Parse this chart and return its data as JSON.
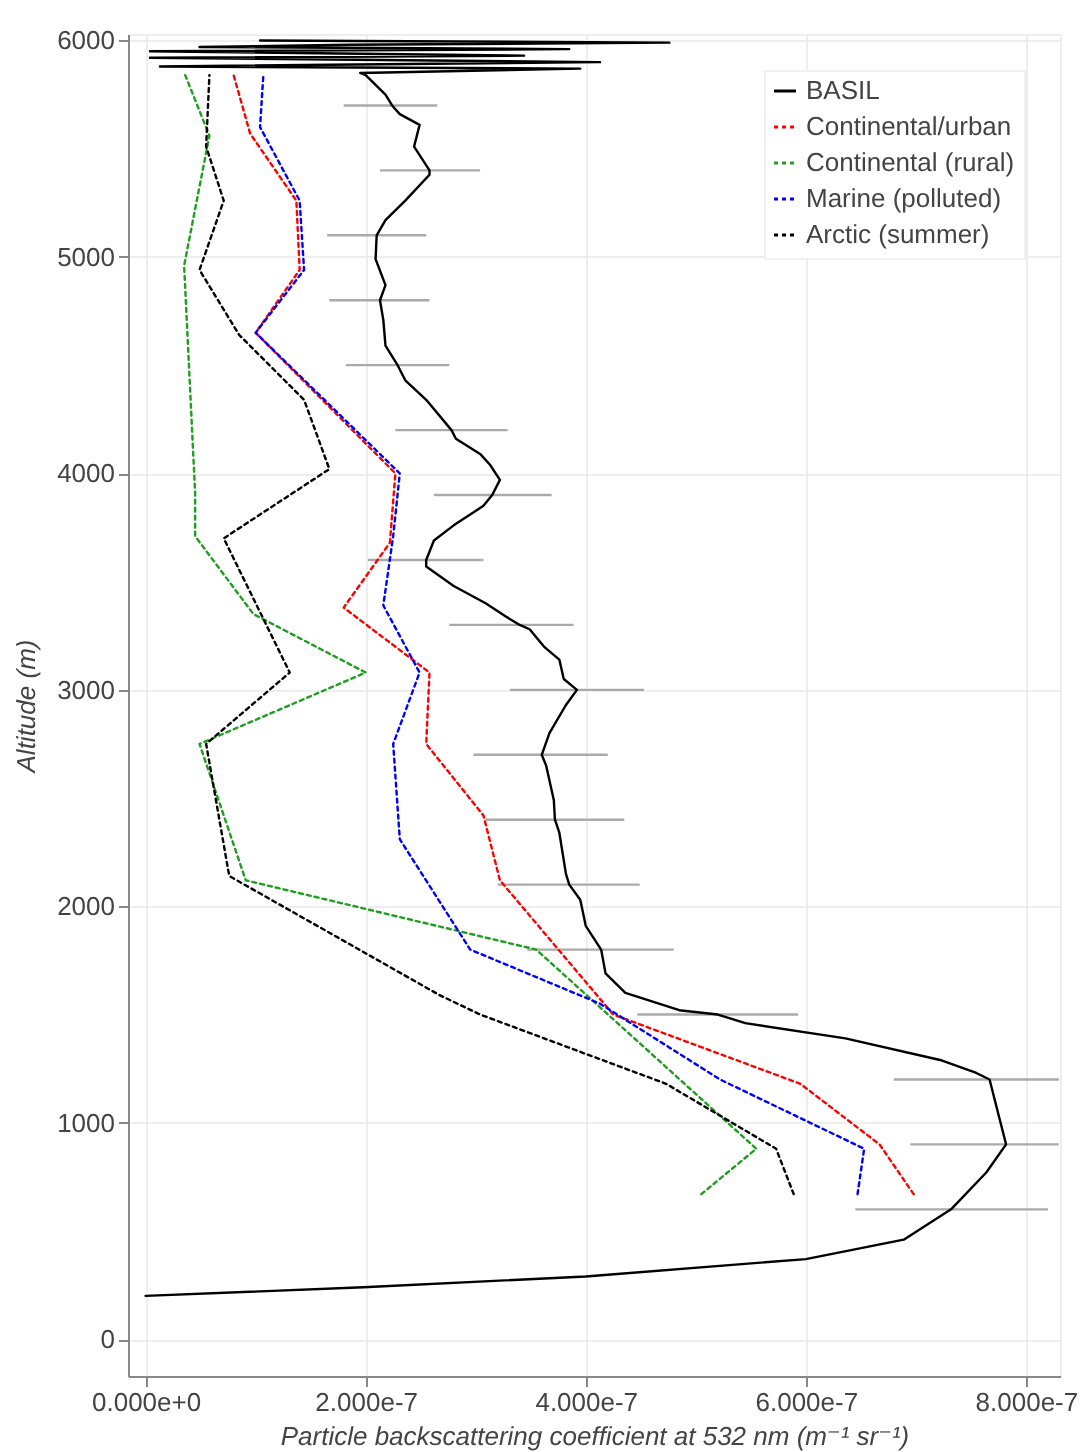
{
  "chart_data": {
    "type": "line",
    "xlabel": "Particle backscattering coefficient at 532 nm  (m⁻¹ sr⁻¹)",
    "ylabel": "Altitude (m)",
    "xlim": [
      -1.6e-08,
      8.31e-07
    ],
    "xticks": [
      {
        "value": 0,
        "label": "0.000e+0"
      },
      {
        "value": 2e-07,
        "label": "2.000e-7"
      },
      {
        "value": 4e-07,
        "label": "4.000e-7"
      },
      {
        "value": 6e-07,
        "label": "6.000e-7"
      },
      {
        "value": 8e-07,
        "label": "8.000e-7"
      }
    ],
    "ylim": [
      -170,
      6030
    ],
    "yticks": [
      0,
      1000,
      2000,
      3000,
      4000,
      5000,
      6000
    ],
    "grid": true,
    "legend": "top right",
    "series": [
      {
        "name": "BASIL",
        "color": "#000000",
        "line_style": "solid",
        "x": [
          0,
          1.98e-07,
          4e-07,
          6e-07,
          6.89e-07,
          7.32e-07,
          7.64e-07,
          7.82e-07,
          7.76e-07,
          7.67e-07,
          7.55e-07,
          7.22e-07,
          6.36e-07,
          5.45e-07,
          5.2e-07,
          4.85e-07,
          4.36e-07,
          4.18e-07,
          4.14e-07,
          4e-07,
          3.95e-07,
          3.85e-07,
          3.82e-07,
          3.76e-07,
          3.72e-07,
          3.71e-07,
          3.64e-07,
          3.6e-07,
          3.67e-07,
          3.82e-07,
          3.92e-07,
          3.8e-07,
          3.76e-07,
          3.62e-07,
          3.49e-07,
          3.4e-07,
          3.27e-07,
          3.09e-07,
          2.8e-07,
          2.55e-07,
          2.55e-07,
          2.62e-07,
          2.8e-07,
          3.07e-07,
          3.15e-07,
          3.22e-07,
          3.13e-07,
          3.04e-07,
          2.82e-07,
          2.78e-07,
          2.55e-07,
          2.36e-07,
          2.29e-07,
          2.18e-07,
          2.16e-07,
          2.13e-07,
          2.18e-07,
          2.09e-07,
          2.1e-07,
          2.18e-07,
          2.36e-07,
          2.58e-07,
          2.58e-07,
          2.44e-07,
          2.49e-07,
          2.31e-07,
          2.24e-07,
          2.18e-07,
          2e-07,
          1.95e-07,
          3.95e-07,
          1.3e-08,
          4.13e-07,
          4e-09,
          3.44e-07,
          4e-09,
          3.85e-07,
          4.9e-08,
          1.85e-07,
          4.76e-07,
          1.04e-07
        ],
        "values": [
          200,
          240,
          290,
          370,
          460,
          600,
          770,
          900,
          1020,
          1200,
          1230,
          1290,
          1390,
          1460,
          1500,
          1520,
          1600,
          1690,
          1800,
          1910,
          2030,
          2100,
          2150,
          2340,
          2400,
          2490,
          2650,
          2700,
          2800,
          2930,
          3000,
          3050,
          3140,
          3200,
          3280,
          3300,
          3340,
          3400,
          3480,
          3570,
          3600,
          3690,
          3760,
          3850,
          3900,
          3970,
          4040,
          4090,
          4160,
          4200,
          4340,
          4430,
          4500,
          4590,
          4710,
          4800,
          4870,
          4990,
          5100,
          5170,
          5260,
          5380,
          5400,
          5510,
          5610,
          5660,
          5700,
          5750,
          5840,
          5850,
          5870,
          5880,
          5900,
          5920,
          5930,
          5950,
          5960,
          5970,
          5980,
          5990,
          6000
        ],
        "xerrors": [
          null,
          null,
          null,
          null,
          null,
          [
            6.45e-07,
            8.2e-07
          ],
          null,
          [
            6.95e-07,
            8.3e-07
          ],
          null,
          [
            6.8e-07,
            8.3e-07
          ],
          null,
          null,
          null,
          null,
          [
            4.47e-07,
            5.93e-07
          ],
          null,
          null,
          null,
          [
            3.47e-07,
            4.8e-07
          ],
          null,
          null,
          [
            3.2e-07,
            4.49e-07
          ],
          null,
          null,
          [
            3.09e-07,
            4.35e-07
          ],
          null,
          null,
          [
            2.98e-07,
            4.2e-07
          ],
          null,
          null,
          [
            3.31e-07,
            4.53e-07
          ],
          null,
          null,
          null,
          null,
          [
            2.76e-07,
            3.89e-07
          ],
          null,
          null,
          null,
          null,
          [
            2.02e-07,
            3.07e-07
          ],
          null,
          null,
          null,
          [
            2.62e-07,
            3.69e-07
          ],
          null,
          null,
          null,
          null,
          [
            2.27e-07,
            3.29e-07
          ],
          null,
          null,
          [
            1.82e-07,
            2.76e-07
          ],
          null,
          null,
          [
            1.67e-07,
            2.58e-07
          ],
          null,
          null,
          [
            1.65e-07,
            2.55e-07
          ],
          null,
          null,
          null,
          [
            2.13e-07,
            3.04e-07
          ],
          null,
          null,
          null,
          [
            1.8e-07,
            2.65e-07
          ],
          null,
          null,
          null,
          null,
          null,
          null,
          null,
          null,
          null,
          null,
          null,
          null,
          null,
          null
        ]
      },
      {
        "name": "Continental/urban",
        "color": "#ff0000",
        "line_style": "dotted",
        "x": [
          6.98e-07,
          6.67e-07,
          5.95e-07,
          4.25e-07,
          3.22e-07,
          3.07e-07,
          2.55e-07,
          2.58e-07,
          1.8e-07,
          2.22e-07,
          2.27e-07,
          1e-07,
          1.4e-07,
          1.37e-07,
          9.5e-08,
          8e-08
        ],
        "values": [
          670,
          900,
          1180,
          1500,
          2120,
          2420,
          2750,
          3080,
          3380,
          3680,
          4000,
          4650,
          4940,
          5260,
          5570,
          5840
        ]
      },
      {
        "name": "Continental (rural)",
        "color": "#1f9e1f",
        "line_style": "dotted",
        "x": [
          5.05e-07,
          5.55e-07,
          3.55e-07,
          9.1e-08,
          4.9e-08,
          2e-07,
          9.8e-08,
          4.5e-08,
          4.5e-08,
          3.5e-08,
          5.8e-08,
          3.6e-08
        ],
        "values": [
          670,
          880,
          1800,
          2120,
          2750,
          3080,
          3350,
          3710,
          3910,
          4960,
          5560,
          5840
        ]
      },
      {
        "name": "Marine (polluted)",
        "color": "#0000ff",
        "line_style": "dotted",
        "x": [
          6.47e-07,
          6.53e-07,
          5.22e-07,
          4.13e-07,
          2.95e-07,
          2.31e-07,
          2.25e-07,
          2.49e-07,
          2.16e-07,
          2.25e-07,
          2.31e-07,
          1e-07,
          1.44e-07,
          1.4e-07,
          1.04e-07,
          1.07e-07
        ],
        "values": [
          670,
          880,
          1200,
          1550,
          1800,
          2310,
          2750,
          3080,
          3390,
          3710,
          4000,
          4650,
          4940,
          5260,
          5600,
          5840
        ]
      },
      {
        "name": "Arctic (summer)",
        "color": "#000000",
        "line_style": "dotted",
        "x": [
          5.89e-07,
          5.73e-07,
          4.73e-07,
          3.04e-07,
          2.67e-07,
          7.6e-08,
          5.5e-08,
          1.31e-07,
          7.1e-08,
          1.67e-07,
          1.44e-07,
          8.5e-08,
          4.9e-08,
          7.1e-08,
          5.5e-08,
          5.8e-08
        ],
        "values": [
          670,
          880,
          1180,
          1500,
          1590,
          2140,
          2750,
          3080,
          3700,
          4020,
          4340,
          4640,
          4940,
          5260,
          5510,
          5840
        ]
      }
    ]
  }
}
